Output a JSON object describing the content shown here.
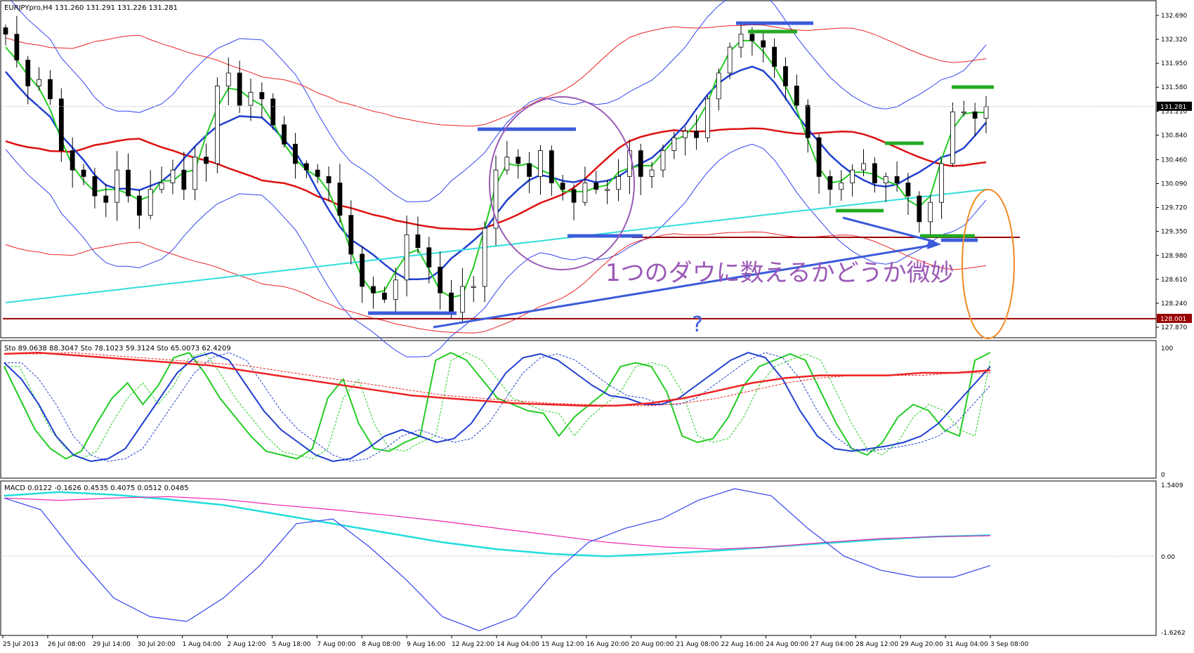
{
  "chart_data": [
    {
      "type": "candlestick",
      "title": "EURJPYpro,H4",
      "ohlc_header": [
        "131.260",
        "131.291",
        "131.226",
        "131.281"
      ],
      "yticks": [
        "132.690",
        "132.320",
        "131.950",
        "131.580",
        "131.210",
        "130.840",
        "130.460",
        "130.090",
        "129.720",
        "129.350",
        "128.980",
        "128.610",
        "128.240",
        "127.870"
      ],
      "ylim": [
        127.87,
        132.69
      ],
      "current_price": "131.281",
      "level_label": "128.001",
      "horizontal_levels": [
        {
          "value": 128.001,
          "color": "#990000"
        },
        {
          "value": 129.26,
          "color": "#990000"
        }
      ],
      "xticks": [
        "25 Jul 2013",
        "26 Jul 08:00",
        "29 Jul 14:00",
        "30 Jul 20:00",
        "1 Aug 04:00",
        "2 Aug 12:00",
        "5 Aug 18:00",
        "7 Aug 00:00",
        "8 Aug 08:00",
        "9 Aug 16:00",
        "12 Aug 22:00",
        "14 Aug 04:00",
        "15 Aug 12:00",
        "16 Aug 20:00",
        "20 Aug 00:00",
        "21 Aug 08:00",
        "22 Aug 16:00",
        "24 Aug 00:00",
        "27 Aug 04:00",
        "28 Aug 12:00",
        "29 Aug 20:00",
        "31 Aug 04:00",
        "3 Sep 08:00"
      ],
      "close_path": [
        132.4,
        132.0,
        131.6,
        131.7,
        131.4,
        130.6,
        130.3,
        130.2,
        129.9,
        129.8,
        130.3,
        129.9,
        129.6,
        130.0,
        130.1,
        130.3,
        130.0,
        130.5,
        130.4,
        131.6,
        131.8,
        131.3,
        131.5,
        131.4,
        131.0,
        130.7,
        130.4,
        130.3,
        130.2,
        130.1,
        129.6,
        129.0,
        128.5,
        128.4,
        128.3,
        128.6,
        129.3,
        129.1,
        128.8,
        128.4,
        128.1,
        128.5,
        128.5,
        129.4,
        130.3,
        130.5,
        130.4,
        130.2,
        130.6,
        130.1,
        130.0,
        129.8,
        130.1,
        130.0,
        130.0,
        130.2,
        130.6,
        130.2,
        130.3,
        130.6,
        130.8,
        130.9,
        130.8,
        131.4,
        131.8,
        132.2,
        132.4,
        132.3,
        132.2,
        131.9,
        131.6,
        131.3,
        130.8,
        130.2,
        130.0,
        130.1,
        130.3,
        130.4,
        130.1,
        130.2,
        130.1,
        129.9,
        129.5,
        129.8,
        130.4,
        131.2,
        131.2,
        131.1,
        131.28
      ],
      "annotations": [
        {
          "text": "1つのダウに数えるかどうか微妙",
          "color": "#9b59b6"
        },
        {
          "text": "?",
          "color": "#3b5bdb"
        }
      ]
    },
    {
      "type": "line",
      "title": "Sto 89.0638 88.3047  Sto 78.1023 59.3124  Sto 65.0073 62.4209",
      "yticks": [
        "100",
        "0"
      ],
      "ylim": [
        0,
        100
      ],
      "series": [
        {
          "color": "#22cc22",
          "values": [
            85,
            60,
            35,
            20,
            12,
            18,
            40,
            60,
            72,
            55,
            70,
            92,
            96,
            80,
            60,
            45,
            30,
            18,
            15,
            12,
            20,
            60,
            75,
            40,
            20,
            18,
            25,
            30,
            90,
            96,
            90,
            75,
            60,
            55,
            50,
            48,
            30,
            45,
            55,
            65,
            85,
            88,
            85,
            65,
            30,
            25,
            28,
            45,
            70,
            85,
            90,
            95,
            90,
            65,
            40,
            20,
            15,
            25,
            45,
            55,
            50,
            35,
            30,
            90,
            96
          ]
        },
        {
          "color": "#1f3fcf",
          "values": [
            88,
            75,
            55,
            30,
            15,
            10,
            12,
            20,
            40,
            60,
            80,
            92,
            96,
            90,
            70,
            50,
            35,
            25,
            15,
            10,
            12,
            20,
            30,
            35,
            30,
            25,
            28,
            40,
            60,
            80,
            92,
            95,
            90,
            80,
            70,
            62,
            60,
            55,
            55,
            60,
            70,
            80,
            90,
            96,
            92,
            75,
            50,
            30,
            20,
            18,
            20,
            22,
            25,
            30,
            40,
            55,
            70,
            85
          ]
        },
        {
          "color": "#ee2222",
          "values": [
            95,
            96,
            94,
            92,
            90,
            88,
            86,
            82,
            78,
            74,
            70,
            66,
            62,
            60,
            58,
            56,
            55,
            54,
            54,
            56,
            60,
            66,
            72,
            76,
            78,
            78,
            78,
            80,
            80,
            82
          ]
        }
      ]
    },
    {
      "type": "line",
      "title": "MACD 0.0122 -0.1626 0.4535 0.4075 0.0512 0.0485",
      "yticks": [
        "1.5409",
        "0.00",
        "-1.6262"
      ],
      "ylim": [
        -1.6262,
        1.5409
      ],
      "series": [
        {
          "color": "#22dddd",
          "values": [
            1.3,
            1.38,
            1.32,
            1.22,
            1.1,
            0.9,
            0.7,
            0.5,
            0.3,
            0.15,
            0.05,
            0.0,
            0.05,
            0.12,
            0.2,
            0.28,
            0.36,
            0.42,
            0.45
          ]
        },
        {
          "color": "#ee22aa",
          "values": [
            1.25,
            1.2,
            1.25,
            1.28,
            1.22,
            1.1,
            1.0,
            0.88,
            0.75,
            0.6,
            0.45,
            0.3,
            0.2,
            0.15,
            0.2,
            0.3,
            0.38,
            0.42,
            0.44
          ]
        },
        {
          "color": "#3344ee",
          "values": [
            1.25,
            1.0,
            0.0,
            -0.9,
            -1.3,
            -1.4,
            -0.9,
            -0.2,
            0.7,
            0.8,
            0.2,
            -0.5,
            -1.3,
            -1.6,
            -1.3,
            -0.4,
            0.3,
            0.6,
            0.8,
            1.2,
            1.45,
            1.3,
            0.6,
            0.0,
            -0.3,
            -0.45,
            -0.45,
            -0.2
          ]
        }
      ]
    }
  ]
}
